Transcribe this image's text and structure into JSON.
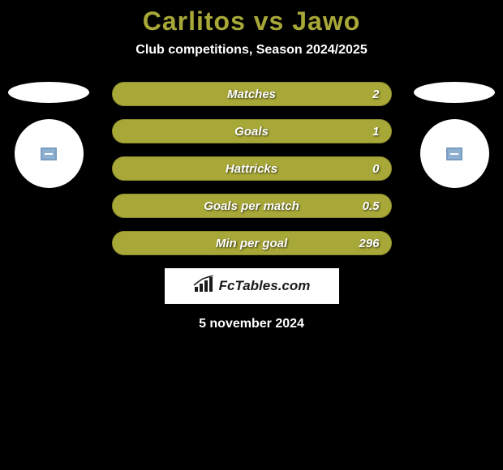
{
  "title": "Carlitos vs Jawo",
  "subtitle": "Club competitions, Season 2024/2025",
  "title_color": "#a8a838",
  "background_color": "#000000",
  "text_color": "#ffffff",
  "bar_empty_color": "#a8a838",
  "bar_fill_color": "#a8a838",
  "bar_border_color": "#8c8c2e",
  "stats": [
    {
      "label": "Matches",
      "value": "2",
      "fill_pct": 100
    },
    {
      "label": "Goals",
      "value": "1",
      "fill_pct": 100
    },
    {
      "label": "Hattricks",
      "value": "0",
      "fill_pct": 100
    },
    {
      "label": "Goals per match",
      "value": "0.5",
      "fill_pct": 100
    },
    {
      "label": "Min per goal",
      "value": "296",
      "fill_pct": 100
    }
  ],
  "brand": "FcTables.com",
  "date": "5 november 2024",
  "player_icon_border": "#7a9cc0",
  "player_icon_fill": "#8db0d0"
}
